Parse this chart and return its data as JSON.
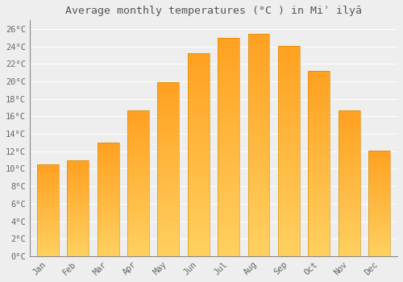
{
  "title": "Average monthly temperatures (°C ) in Miʾ ilyā",
  "months": [
    "Jan",
    "Feb",
    "Mar",
    "Apr",
    "May",
    "Jun",
    "Jul",
    "Aug",
    "Sep",
    "Oct",
    "Nov",
    "Dec"
  ],
  "values": [
    10.5,
    11.0,
    13.0,
    16.7,
    19.9,
    23.2,
    25.0,
    25.5,
    24.1,
    21.2,
    16.7,
    12.1
  ],
  "bar_color_bottom": "#FFD060",
  "bar_color_top": "#FFA020",
  "ylim": [
    0,
    27
  ],
  "yticks": [
    0,
    2,
    4,
    6,
    8,
    10,
    12,
    14,
    16,
    18,
    20,
    22,
    24,
    26
  ],
  "background_color": "#eeeeee",
  "grid_color": "#ffffff",
  "title_fontsize": 9.5,
  "tick_fontsize": 7.5,
  "bar_width": 0.72
}
